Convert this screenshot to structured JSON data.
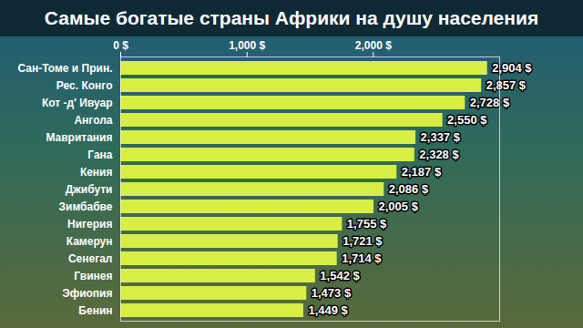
{
  "chart_data": {
    "type": "bar",
    "orientation": "horizontal",
    "title": "Самые богатые страны Африки на душу населения",
    "categories": [
      "Сан-Томе и Прин.",
      "Рес. Конго",
      "Кот -д' Ивуар",
      "Ангола",
      "Мавритания",
      "Гана",
      "Кения",
      "Джибути",
      "Зимбабве",
      "Нигерия",
      "Камерун",
      "Сенегал",
      "Гвинея",
      "Эфиопия",
      "Бенин"
    ],
    "values": [
      2904,
      2857,
      2728,
      2550,
      2337,
      2328,
      2187,
      2086,
      2005,
      1755,
      1721,
      1714,
      1542,
      1473,
      1449
    ],
    "value_labels": [
      "2,904 $",
      "2,857 $",
      "2,728 $",
      "2,550 $",
      "2,337 $",
      "2,328 $",
      "2,187 $",
      "2,086 $",
      "2,005 $",
      "1,755 $",
      "1,721 $",
      "1,714 $",
      "1,542 $",
      "1,473 $",
      "1,449 $"
    ],
    "data_labels": true,
    "color": "#d8ee45",
    "xlim": [
      0,
      3000
    ],
    "xticks": [
      {
        "value": 0,
        "label": "0 $"
      },
      {
        "value": 1000,
        "label": "1,000 $"
      },
      {
        "value": 2000,
        "label": "2,000 $"
      }
    ],
    "grid": false
  }
}
